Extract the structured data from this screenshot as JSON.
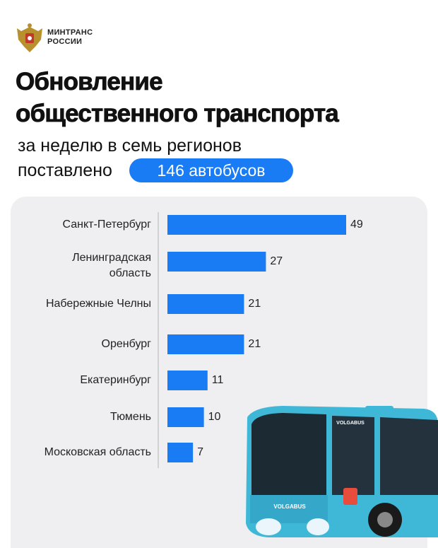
{
  "header": {
    "org_line1": "МИНТРАНС",
    "org_line2": "РОССИИ",
    "title_line1": "Обновление",
    "title_line2": "общественного транспорта",
    "subtitle_line1": "за неделю в семь регионов",
    "subtitle_line2": "поставлено",
    "highlight": "146 автобусов"
  },
  "chart_data": {
    "type": "bar",
    "categories": [
      "Санкт-Петербург",
      "Ленинградская\nобласть",
      "Набережные Челны",
      "Оренбург",
      "Екатеринбург",
      "Тюмень",
      "Московская область"
    ],
    "values": [
      49,
      27,
      21,
      21,
      11,
      10,
      7
    ],
    "color": "#1a7cf5"
  },
  "bus_image": {
    "labels": [
      "VOLGABUS",
      "VOLGABUS"
    ]
  }
}
